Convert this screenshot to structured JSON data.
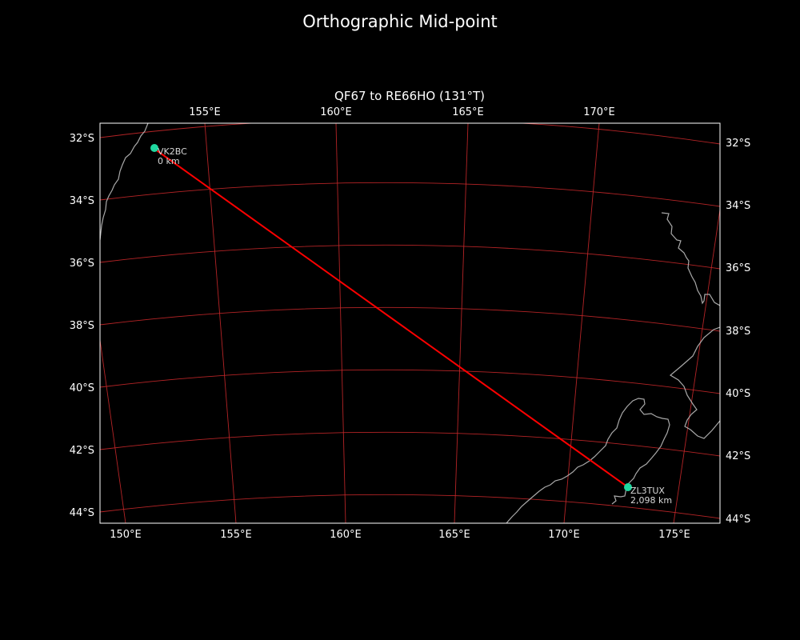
{
  "figure": {
    "title": "Orthographic Mid-point",
    "subtitle": "QF67 to RE66HO (131°T)"
  },
  "chart_data": {
    "type": "map",
    "projection": "orthographic",
    "bottom_lon_ticks": [
      "150°E",
      "155°E",
      "160°E",
      "165°E",
      "170°E",
      "175°E"
    ],
    "top_lon_ticks": [
      "155°E",
      "160°E",
      "165°E",
      "170°E"
    ],
    "left_lat_ticks": [
      "32°S",
      "34°S",
      "36°S",
      "38°S",
      "40°S",
      "42°S",
      "44°S"
    ],
    "right_lat_ticks": [
      "32°S",
      "34°S",
      "36°S",
      "38°S",
      "40°S",
      "42°S",
      "44°S"
    ],
    "path": {
      "from": "VK2BC",
      "to": "ZL3TUX",
      "color": "#ff0000"
    },
    "stations": [
      {
        "call": "VK2BC",
        "distance": "0 km",
        "color": "#1fd8a0"
      },
      {
        "call": "ZL3TUX",
        "distance": "2,098 km",
        "color": "#1fd8a0"
      }
    ],
    "colors": {
      "background": "#000000",
      "graticule": "#c8282a",
      "coastline": "#a9a9a9",
      "frame": "#ffffff"
    }
  }
}
